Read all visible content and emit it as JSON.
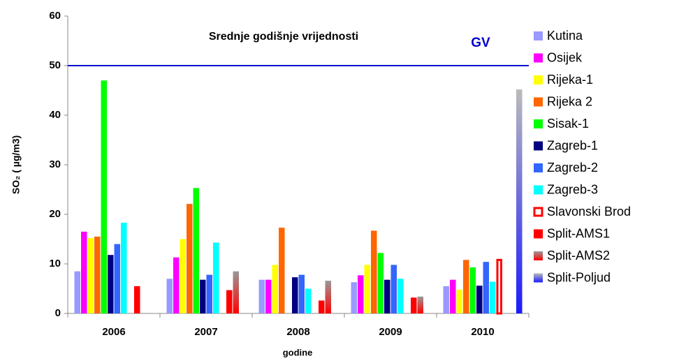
{
  "chart_data": {
    "type": "bar",
    "title": "Srednje godišnje vrijednosti",
    "x_label": "godine",
    "y_label": "SO₂ ( µg/m3)",
    "categories": [
      "2006",
      "2007",
      "2008",
      "2009",
      "2010"
    ],
    "ylim": [
      0,
      60
    ],
    "yticks": [
      0,
      10,
      20,
      30,
      40,
      50,
      60
    ],
    "grid": false,
    "legend": "right",
    "reference_line": {
      "label": "GV",
      "value": 50,
      "color": "#0000cc"
    },
    "series": [
      {
        "name": "Kutina",
        "color": "#9999ff",
        "values": [
          8.5,
          7,
          6.8,
          6.3,
          5.5
        ]
      },
      {
        "name": "Osijek",
        "color": "#ff00ff",
        "values": [
          16.5,
          11.3,
          6.8,
          7.7,
          6.8
        ]
      },
      {
        "name": "Rijeka-1",
        "color": "#ffff00",
        "values": [
          15.2,
          15,
          9.8,
          9.8,
          4.8
        ]
      },
      {
        "name": "Rijeka 2",
        "color": "#ff6600",
        "values": [
          15.5,
          22.1,
          17.3,
          16.7,
          10.8
        ]
      },
      {
        "name": "Sisak-1",
        "color": "#00ff00",
        "values": [
          47,
          25.3,
          null,
          12.2,
          9.3
        ]
      },
      {
        "name": "Zagreb-1",
        "color": "#000080",
        "values": [
          11.8,
          6.8,
          7.3,
          6.8,
          5.6
        ]
      },
      {
        "name": "Zagreb-2",
        "color": "#3366ff",
        "values": [
          14,
          7.8,
          7.8,
          9.8,
          10.4
        ]
      },
      {
        "name": "Zagreb-3",
        "color": "#00ffff",
        "values": [
          18.3,
          14.3,
          5,
          7,
          6.4
        ]
      },
      {
        "name": "Slavonski Brod",
        "color": "#ffffff",
        "border": "#ff0000",
        "values": [
          null,
          null,
          null,
          null,
          11
        ]
      },
      {
        "name": "Split-AMS1",
        "color": "#ff0000",
        "values": [
          5.5,
          4.7,
          2.6,
          3.2,
          null
        ]
      },
      {
        "name": "Split-AMS2",
        "color": [
          "#999999",
          "#ff0000"
        ],
        "values": [
          null,
          8.5,
          6.6,
          3.4,
          null
        ]
      },
      {
        "name": "Split-Poljud",
        "color": [
          "#bbbbbb",
          "#1a1aff"
        ],
        "values": [
          null,
          null,
          null,
          null,
          45.2
        ]
      }
    ]
  }
}
